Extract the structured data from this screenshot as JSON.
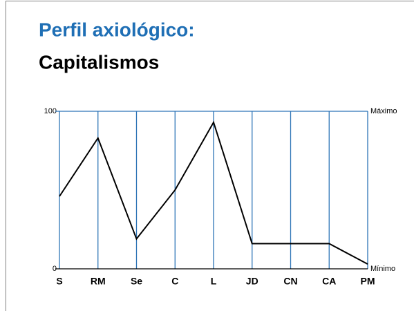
{
  "chart_data": {
    "type": "line",
    "title": "Perfil axiológico:",
    "subtitle": "Capitalismos",
    "categories": [
      "S",
      "RM",
      "Se",
      "C",
      "L",
      "JD",
      "CN",
      "CA",
      "PM"
    ],
    "values": [
      46,
      83,
      19,
      50,
      93,
      16,
      16,
      16,
      3
    ],
    "color": "#000000",
    "grid_color": "#2e75b6",
    "ylim": [
      0,
      100
    ],
    "yticks": [
      0,
      100
    ],
    "annotations": {
      "max": "Máximo",
      "min": "Mínimo"
    }
  }
}
